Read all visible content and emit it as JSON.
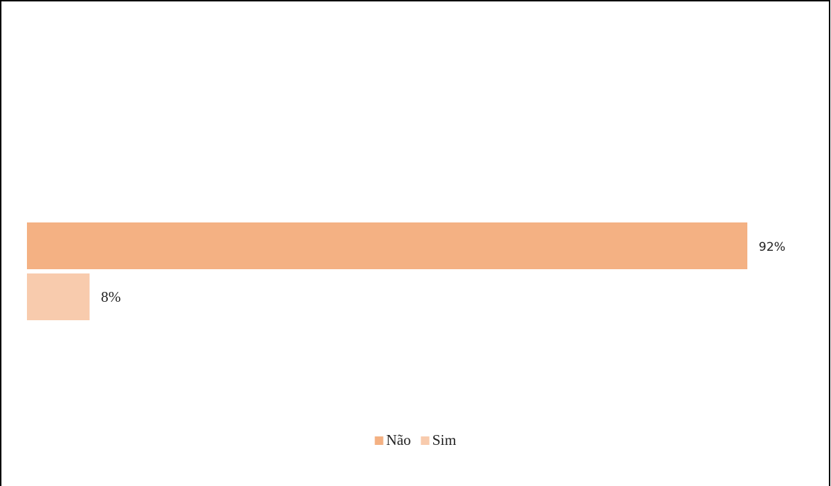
{
  "chart_data": {
    "type": "hbar",
    "categories": [
      null
    ],
    "series": [
      {
        "name": "Não",
        "color": "#f4b183",
        "values": [
          92
        ],
        "value_labels": [
          "92%"
        ]
      },
      {
        "name": "Sim",
        "color": "#f8cbad",
        "values": [
          8
        ],
        "value_labels": [
          "8%"
        ]
      }
    ],
    "legend": "bottom"
  }
}
